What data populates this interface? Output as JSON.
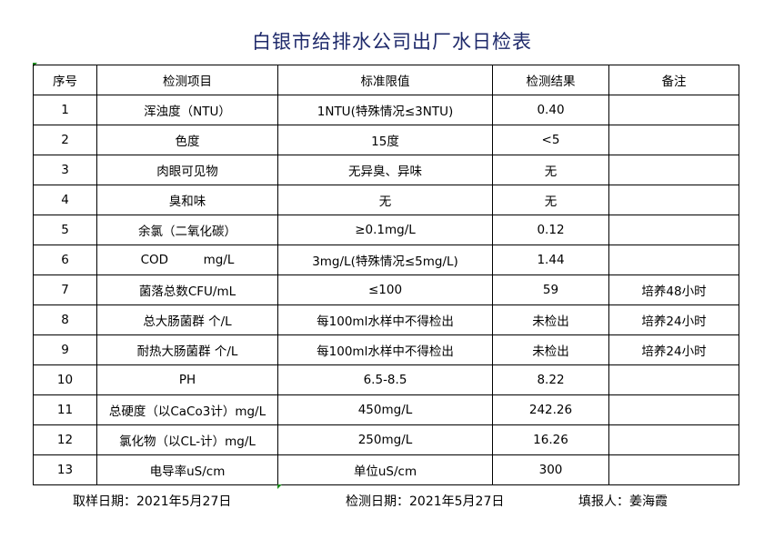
{
  "title": "白银市给排水公司出厂水日检表",
  "headers": [
    "序号",
    "检测项目",
    "标准限值",
    "检测结果",
    "备注"
  ],
  "rows": [
    [
      "1",
      "浑浊度（NTU）",
      "1NTU(特殊情况≤3NTU)",
      "0.40",
      ""
    ],
    [
      "2",
      "色度",
      "15度",
      "<5",
      ""
    ],
    [
      "3",
      "肉眼可见物",
      "无异臭、异味",
      "无",
      ""
    ],
    [
      "4",
      "臭和味",
      "无",
      "无",
      ""
    ],
    [
      "5",
      "余氯（二氧化碳）",
      "≥0.1mg/L",
      "0.12",
      ""
    ],
    [
      "6",
      "COD         mg/L",
      "3mg/L(特殊情况≤5mg/L)",
      "1.44",
      ""
    ],
    [
      "7",
      "菌落总数CFU/mL",
      "≤100",
      "59",
      "培养48小时"
    ],
    [
      "8",
      "总大肠菌群 个/L",
      "每100ml水样中不得检出",
      "未检出",
      "培养24小时"
    ],
    [
      "9",
      "耐热大肠菌群 个/L",
      "每100ml水样中不得检出",
      "未检出",
      "培养24小时"
    ],
    [
      "10",
      "PH",
      "6.5-8.5",
      "8.22",
      ""
    ],
    [
      "11",
      "总硬度（以CaCo3计）mg/L",
      "450mg/L",
      "242.26",
      ""
    ],
    [
      "12",
      "氯化物（以CL-计）mg/L",
      "250mg/L",
      "16.26",
      ""
    ],
    [
      "13",
      "电导率uS/cm",
      "单位uS/cm",
      "300",
      ""
    ]
  ],
  "footer": {
    "sampling_date": "取样日期：2021年5月27日",
    "test_date": "检测日期：2021年5月27日",
    "reporter": "填报人：姜海霞"
  }
}
